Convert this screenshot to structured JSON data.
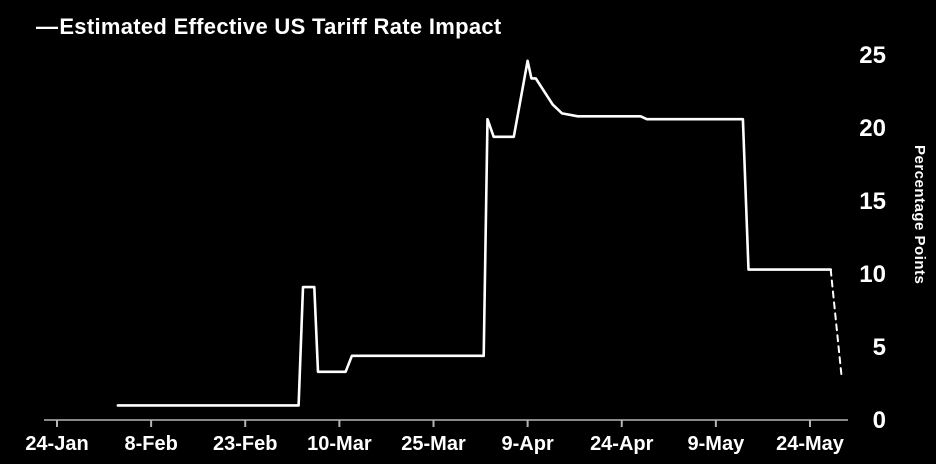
{
  "chart_data": {
    "type": "line",
    "title": "Estimated Effective US Tariff Rate Impact",
    "legend_marker": "—",
    "ylabel": "Percentage Points",
    "xlabel": "",
    "ylim": [
      0,
      25
    ],
    "y_ticks": [
      0,
      5,
      10,
      15,
      20,
      25
    ],
    "x_unit": "days since 24-Jan",
    "xlim": [
      0,
      126
    ],
    "x_ticks": [
      {
        "day": 0,
        "label": "24-Jan"
      },
      {
        "day": 15,
        "label": "8-Feb"
      },
      {
        "day": 30,
        "label": "23-Feb"
      },
      {
        "day": 45,
        "label": "10-Mar"
      },
      {
        "day": 60,
        "label": "25-Mar"
      },
      {
        "day": 75,
        "label": "9-Apr"
      },
      {
        "day": 90,
        "label": "24-Apr"
      },
      {
        "day": 105,
        "label": "9-May"
      },
      {
        "day": 120,
        "label": "24-May"
      }
    ],
    "grid": false,
    "legend_position": "top-left",
    "line_color": "#ffffff",
    "axis_color": "#b5b5b5",
    "background_color": "#000000",
    "series": [
      {
        "name": "estimated-effective-us-tariff-rate-impact",
        "style": "solid",
        "points": [
          [
            9.7,
            1.0
          ],
          [
            38.5,
            1.0
          ],
          [
            39.2,
            9.1
          ],
          [
            41.0,
            9.1
          ],
          [
            41.6,
            3.3
          ],
          [
            46.0,
            3.3
          ],
          [
            47.0,
            4.4
          ],
          [
            68.0,
            4.4
          ],
          [
            68.6,
            20.6
          ],
          [
            69.6,
            19.4
          ],
          [
            72.8,
            19.4
          ],
          [
            75.0,
            24.6
          ],
          [
            75.6,
            23.4
          ],
          [
            76.3,
            23.4
          ],
          [
            79.0,
            21.6
          ],
          [
            80.5,
            21.0
          ],
          [
            83.0,
            20.8
          ],
          [
            93.0,
            20.8
          ],
          [
            94.0,
            20.6
          ],
          [
            109.3,
            20.6
          ],
          [
            110.2,
            10.3
          ],
          [
            123.3,
            10.3
          ]
        ]
      },
      {
        "name": "projection-dashed",
        "style": "dashed",
        "points": [
          [
            123.3,
            10.3
          ],
          [
            125.0,
            3.1
          ]
        ]
      }
    ]
  }
}
